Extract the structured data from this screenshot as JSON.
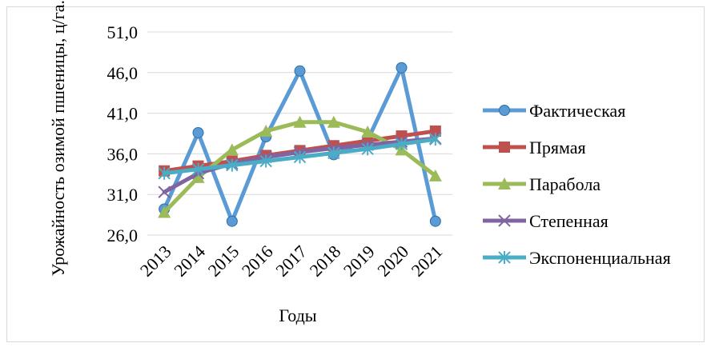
{
  "chart_data": {
    "type": "line",
    "title": "",
    "xlabel": "Годы",
    "ylabel": "Урожайность озимой пшеницы, ц/га..",
    "categories": [
      "2013",
      "2014",
      "2015",
      "2016",
      "2017",
      "2018",
      "2019",
      "2020",
      "2021"
    ],
    "y_ticks": [
      "26,0",
      "31,0",
      "36,0",
      "41,0",
      "46,0",
      "51,0"
    ],
    "ylim": [
      26,
      51
    ],
    "grid": true,
    "legend_position": "right",
    "series": [
      {
        "name": "Фактическая",
        "marker": "circle",
        "color": "#5B9BD5",
        "values": [
          29.2,
          38.6,
          27.7,
          38.1,
          46.2,
          35.9,
          37.7,
          46.6,
          27.7
        ]
      },
      {
        "name": "Прямая",
        "marker": "square",
        "color": "#C0504D",
        "values": [
          33.9,
          34.5,
          35.1,
          35.8,
          36.4,
          37.0,
          37.6,
          38.2,
          38.8
        ]
      },
      {
        "name": "Парабола",
        "marker": "triangle",
        "color": "#9BBB59",
        "values": [
          28.8,
          33.1,
          36.5,
          38.8,
          39.9,
          39.9,
          38.7,
          36.5,
          33.3
        ]
      },
      {
        "name": "Степенная",
        "marker": "x",
        "color": "#8064A2",
        "values": [
          31.3,
          33.6,
          34.8,
          35.6,
          36.2,
          36.7,
          37.1,
          37.5,
          37.9
        ]
      },
      {
        "name": "Экспоненциальная",
        "marker": "star",
        "color": "#4BACC6",
        "values": [
          33.6,
          34.1,
          34.6,
          35.1,
          35.6,
          36.1,
          36.6,
          37.2,
          37.8
        ]
      }
    ]
  }
}
